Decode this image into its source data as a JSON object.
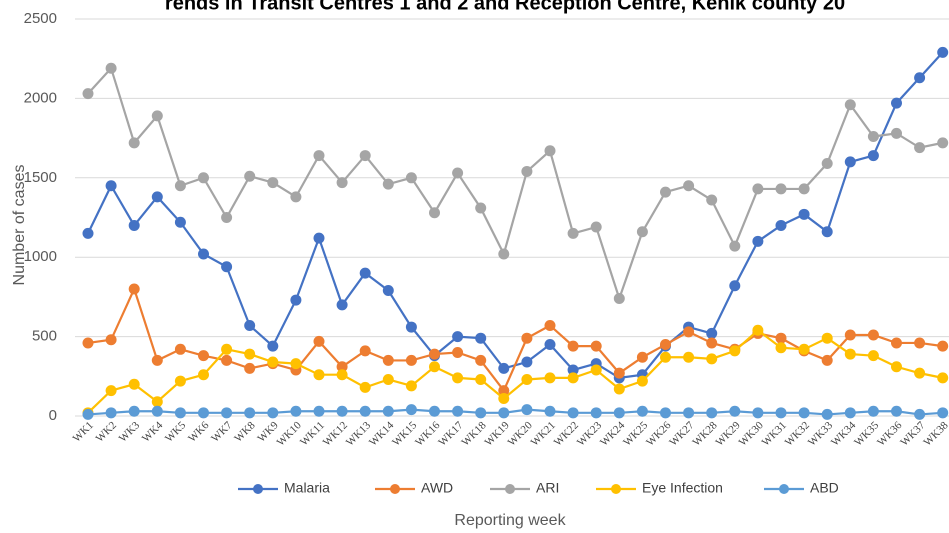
{
  "chart_data": {
    "type": "line",
    "title": "rends in Transit Centres 1 and 2 and Reception Centre, Kenik county 20",
    "x_label": "Reporting week",
    "y_label": "Number of cases",
    "categories": [
      "WK1",
      "WK2",
      "WK3",
      "WK4",
      "WK5",
      "WK6",
      "WK7",
      "WK8",
      "WK9",
      "WK10",
      "WK11",
      "WK12",
      "WK13",
      "WK14",
      "WK15",
      "WK16",
      "WK17",
      "WK18",
      "WK19",
      "WK20",
      "WK21",
      "WK22",
      "WK23",
      "WK24",
      "WK25",
      "WK26",
      "WK27",
      "WK28",
      "WK29",
      "WK30",
      "WK31",
      "WK32",
      "WK33",
      "WK34",
      "WK35",
      "WK36",
      "WK37",
      "WK38"
    ],
    "series": [
      {
        "name": "Malaria",
        "color": "#4472c4",
        "values": [
          1150,
          1450,
          1200,
          1380,
          1220,
          1020,
          940,
          570,
          440,
          730,
          1120,
          700,
          900,
          790,
          560,
          380,
          500,
          490,
          300,
          340,
          450,
          290,
          330,
          240,
          260,
          440,
          560,
          520,
          820,
          1100,
          1200,
          1270,
          1160,
          1600,
          1640,
          1970,
          2130,
          2290
        ]
      },
      {
        "name": "AWD",
        "color": "#ed7d31",
        "values": [
          460,
          480,
          800,
          350,
          420,
          380,
          350,
          300,
          330,
          290,
          470,
          310,
          410,
          350,
          350,
          390,
          400,
          350,
          160,
          490,
          570,
          440,
          440,
          270,
          370,
          450,
          530,
          460,
          420,
          520,
          490,
          410,
          350,
          510,
          510,
          460,
          460,
          440
        ]
      },
      {
        "name": "ARI",
        "color": "#a5a5a5",
        "values": [
          2030,
          2190,
          1720,
          1890,
          1450,
          1500,
          1250,
          1510,
          1470,
          1380,
          1640,
          1470,
          1640,
          1460,
          1500,
          1280,
          1530,
          1310,
          1020,
          1540,
          1670,
          1150,
          1190,
          740,
          1160,
          1410,
          1450,
          1360,
          1070,
          1430,
          1430,
          1430,
          1590,
          1960,
          1760,
          1780,
          1690,
          1720
        ]
      },
      {
        "name": "Eye Infection",
        "color": "#ffc000",
        "values": [
          20,
          160,
          200,
          90,
          220,
          260,
          420,
          390,
          340,
          330,
          260,
          260,
          180,
          230,
          190,
          310,
          240,
          230,
          110,
          230,
          240,
          240,
          290,
          170,
          220,
          370,
          370,
          360,
          410,
          540,
          430,
          420,
          490,
          390,
          380,
          310,
          270,
          240
        ]
      },
      {
        "name": "ABD",
        "color": "#5b9bd5",
        "values": [
          10,
          20,
          30,
          30,
          20,
          20,
          20,
          20,
          20,
          30,
          30,
          30,
          30,
          30,
          40,
          30,
          30,
          20,
          20,
          40,
          30,
          20,
          20,
          20,
          30,
          20,
          20,
          20,
          30,
          20,
          20,
          20,
          10,
          20,
          30,
          30,
          10,
          20
        ]
      }
    ],
    "ylim": [
      0,
      2500
    ],
    "yticks": [
      0,
      500,
      1000,
      1500,
      2000,
      2500
    ],
    "grid": true,
    "legend": "bottom"
  }
}
